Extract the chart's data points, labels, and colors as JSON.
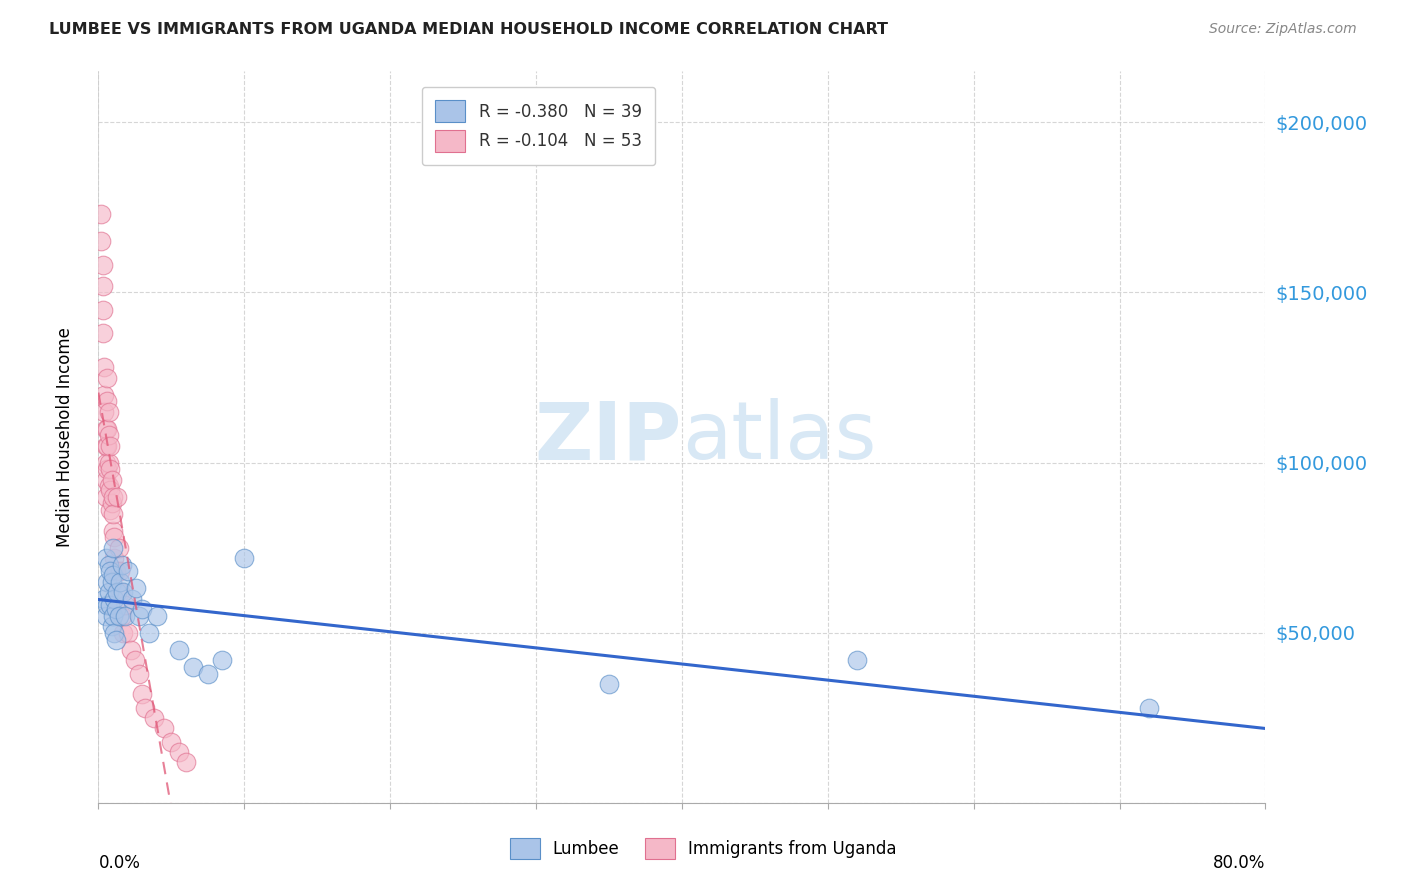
{
  "title": "LUMBEE VS IMMIGRANTS FROM UGANDA MEDIAN HOUSEHOLD INCOME CORRELATION CHART",
  "source": "Source: ZipAtlas.com",
  "ylabel": "Median Household Income",
  "yticks": [
    0,
    50000,
    100000,
    150000,
    200000
  ],
  "ytick_labels": [
    "",
    "$50,000",
    "$100,000",
    "$150,000",
    "$200,000"
  ],
  "xlim": [
    0,
    0.8
  ],
  "ylim": [
    0,
    215000
  ],
  "legend_entry1": "R = -0.380   N = 39",
  "legend_entry2": "R = -0.104   N = 53",
  "legend_color1": "#aac4e8",
  "legend_color2": "#f5b8c8",
  "bg_color": "#ffffff",
  "grid_color": "#cccccc",
  "lumbee_color": "#aac4e8",
  "uganda_color": "#f5b8c8",
  "lumbee_edge": "#5a8fc8",
  "uganda_edge": "#e07090",
  "trend_lumbee_color": "#3366cc",
  "trend_uganda_color": "#e05575",
  "watermark_color": "#d8e8f5",
  "lumbee_x": [
    0.004,
    0.005,
    0.005,
    0.006,
    0.006,
    0.007,
    0.007,
    0.008,
    0.008,
    0.009,
    0.009,
    0.01,
    0.01,
    0.01,
    0.011,
    0.011,
    0.012,
    0.012,
    0.013,
    0.014,
    0.015,
    0.016,
    0.017,
    0.018,
    0.02,
    0.023,
    0.026,
    0.028,
    0.03,
    0.035,
    0.04,
    0.055,
    0.065,
    0.075,
    0.085,
    0.1,
    0.35,
    0.52,
    0.72
  ],
  "lumbee_y": [
    60000,
    72000,
    55000,
    65000,
    58000,
    70000,
    62000,
    68000,
    58000,
    65000,
    52000,
    75000,
    67000,
    55000,
    60000,
    50000,
    57000,
    48000,
    62000,
    55000,
    65000,
    70000,
    62000,
    55000,
    68000,
    60000,
    63000,
    55000,
    57000,
    50000,
    55000,
    45000,
    40000,
    38000,
    42000,
    72000,
    35000,
    42000,
    28000
  ],
  "uganda_x": [
    0.002,
    0.002,
    0.003,
    0.003,
    0.003,
    0.003,
    0.004,
    0.004,
    0.004,
    0.005,
    0.005,
    0.005,
    0.005,
    0.005,
    0.006,
    0.006,
    0.006,
    0.006,
    0.006,
    0.007,
    0.007,
    0.007,
    0.007,
    0.008,
    0.008,
    0.008,
    0.008,
    0.009,
    0.009,
    0.01,
    0.01,
    0.01,
    0.011,
    0.011,
    0.012,
    0.013,
    0.014,
    0.015,
    0.015,
    0.016,
    0.017,
    0.018,
    0.02,
    0.022,
    0.025,
    0.028,
    0.03,
    0.032,
    0.038,
    0.045,
    0.05,
    0.055,
    0.06
  ],
  "uganda_y": [
    173000,
    165000,
    158000,
    152000,
    145000,
    138000,
    128000,
    120000,
    115000,
    110000,
    105000,
    100000,
    95000,
    90000,
    125000,
    118000,
    110000,
    105000,
    98000,
    115000,
    108000,
    100000,
    93000,
    105000,
    98000,
    92000,
    86000,
    95000,
    88000,
    80000,
    90000,
    85000,
    78000,
    72000,
    68000,
    90000,
    75000,
    68000,
    62000,
    55000,
    50000,
    58000,
    50000,
    45000,
    42000,
    38000,
    32000,
    28000,
    25000,
    22000,
    18000,
    15000,
    12000
  ]
}
